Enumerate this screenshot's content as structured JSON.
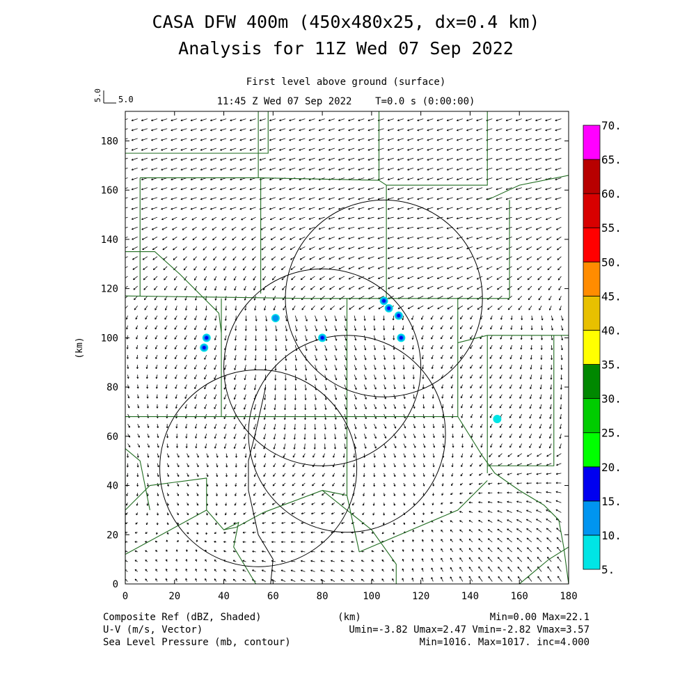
{
  "header": {
    "title_line1": "CASA DFW 400m (450x480x25, dx=0.4 km)",
    "title_line2": "Analysis for 11Z Wed 07 Sep 2022",
    "level": "First level above ground (surface)",
    "time": "11:45 Z Wed 07 Sep 2022    T=0.0 s (0:00:00)",
    "vector_scale_label": "5.0",
    "vector_scale_vertical": "5.0"
  },
  "footer": {
    "line1_left": "Composite Ref (dBZ, Shaded)",
    "line1_center": "(km)",
    "line1_right": "Min=0.00 Max=22.1",
    "line2_left": "U-V (m/s, Vector)",
    "line2_right": "Umin=-3.82 Umax=2.47 Vmin=-2.82 Vmax=3.57",
    "line3_left": "Sea Level Pressure (mb, contour)",
    "line3_right": "Min=1016. Max=1017. inc=4.000"
  },
  "colors": {
    "county_lines": "#1f6b1f",
    "radar_rings": "#000000",
    "arrows": "#000000"
  },
  "colorbar": {
    "levels": [
      "5.",
      "10.",
      "15.",
      "20.",
      "25.",
      "30.",
      "35.",
      "40.",
      "45.",
      "50.",
      "55.",
      "60.",
      "65.",
      "70."
    ],
    "colors": [
      "#00e5e5",
      "#0095f0",
      "#0000f0",
      "#00ff00",
      "#00cc00",
      "#008800",
      "#ffff00",
      "#e8c000",
      "#ff8c00",
      "#ff0000",
      "#d80000",
      "#b80000",
      "#ff00ff"
    ]
  },
  "chart_data": {
    "type": "map",
    "x_label": "",
    "y_label": "(km)",
    "x_ticks": [
      0,
      20,
      40,
      60,
      80,
      100,
      120,
      140,
      160,
      180
    ],
    "y_ticks": [
      0,
      20,
      40,
      60,
      80,
      100,
      120,
      140,
      160,
      180
    ],
    "xlim": [
      0,
      180
    ],
    "ylim": [
      0,
      192
    ],
    "radar_rings_km": [
      {
        "cx": 105,
        "cy": 116,
        "r": 40
      },
      {
        "cx": 80,
        "cy": 88,
        "r": 40
      },
      {
        "cx": 90,
        "cy": 61,
        "r": 40
      },
      {
        "cx": 54,
        "cy": 47,
        "r": 40
      }
    ],
    "reflectivity_cells": [
      {
        "x": 33,
        "y": 100,
        "dbz": 15
      },
      {
        "x": 32,
        "y": 96,
        "dbz": 15
      },
      {
        "x": 61,
        "y": 108,
        "dbz": 10
      },
      {
        "x": 80,
        "y": 100,
        "dbz": 15
      },
      {
        "x": 105,
        "y": 115,
        "dbz": 15
      },
      {
        "x": 107,
        "y": 112,
        "dbz": 15
      },
      {
        "x": 111,
        "y": 109,
        "dbz": 15
      },
      {
        "x": 112,
        "y": 100,
        "dbz": 15
      },
      {
        "x": 151,
        "y": 67,
        "dbz": 5
      }
    ],
    "stats": {
      "ref_min": 0.0,
      "ref_max": 22.1,
      "umin": -3.82,
      "umax": 2.47,
      "vmin": -2.82,
      "vmax": 3.57,
      "slp_min": 1016,
      "slp_max": 1017,
      "slp_inc": 4.0
    }
  }
}
